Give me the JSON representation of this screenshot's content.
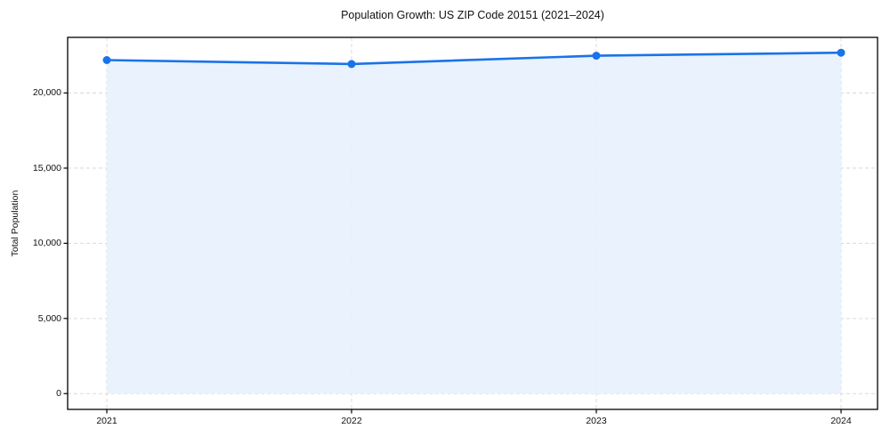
{
  "chart_data": {
    "type": "area",
    "title": "Population Growth: US ZIP Code 20151 (2021–2024)",
    "xlabel": "",
    "ylabel": "Total Population",
    "x": [
      2021,
      2022,
      2023,
      2024
    ],
    "x_tick_labels": [
      "2021",
      "2022",
      "2023",
      "2024"
    ],
    "series": [
      {
        "name": "Total Population",
        "values": [
          22190,
          21930,
          22480,
          22680
        ]
      }
    ],
    "y_ticks": [
      0,
      5000,
      10000,
      15000,
      20000
    ],
    "y_tick_labels": [
      "0",
      "5,000",
      "10,000",
      "15,000",
      "20,000"
    ],
    "xlim": [
      2020.84,
      2024.149
    ],
    "ylim": [
      -1050,
      23700
    ],
    "baseline": 0,
    "grid": true,
    "grid_style": "dashed",
    "legend": false,
    "markers": true,
    "colors": {
      "line": "#1a73e8",
      "fill": "#e8f1fd",
      "grid": "#d9d9d9",
      "spine": "#000000",
      "text": "#111111",
      "background": "#ffffff"
    }
  }
}
